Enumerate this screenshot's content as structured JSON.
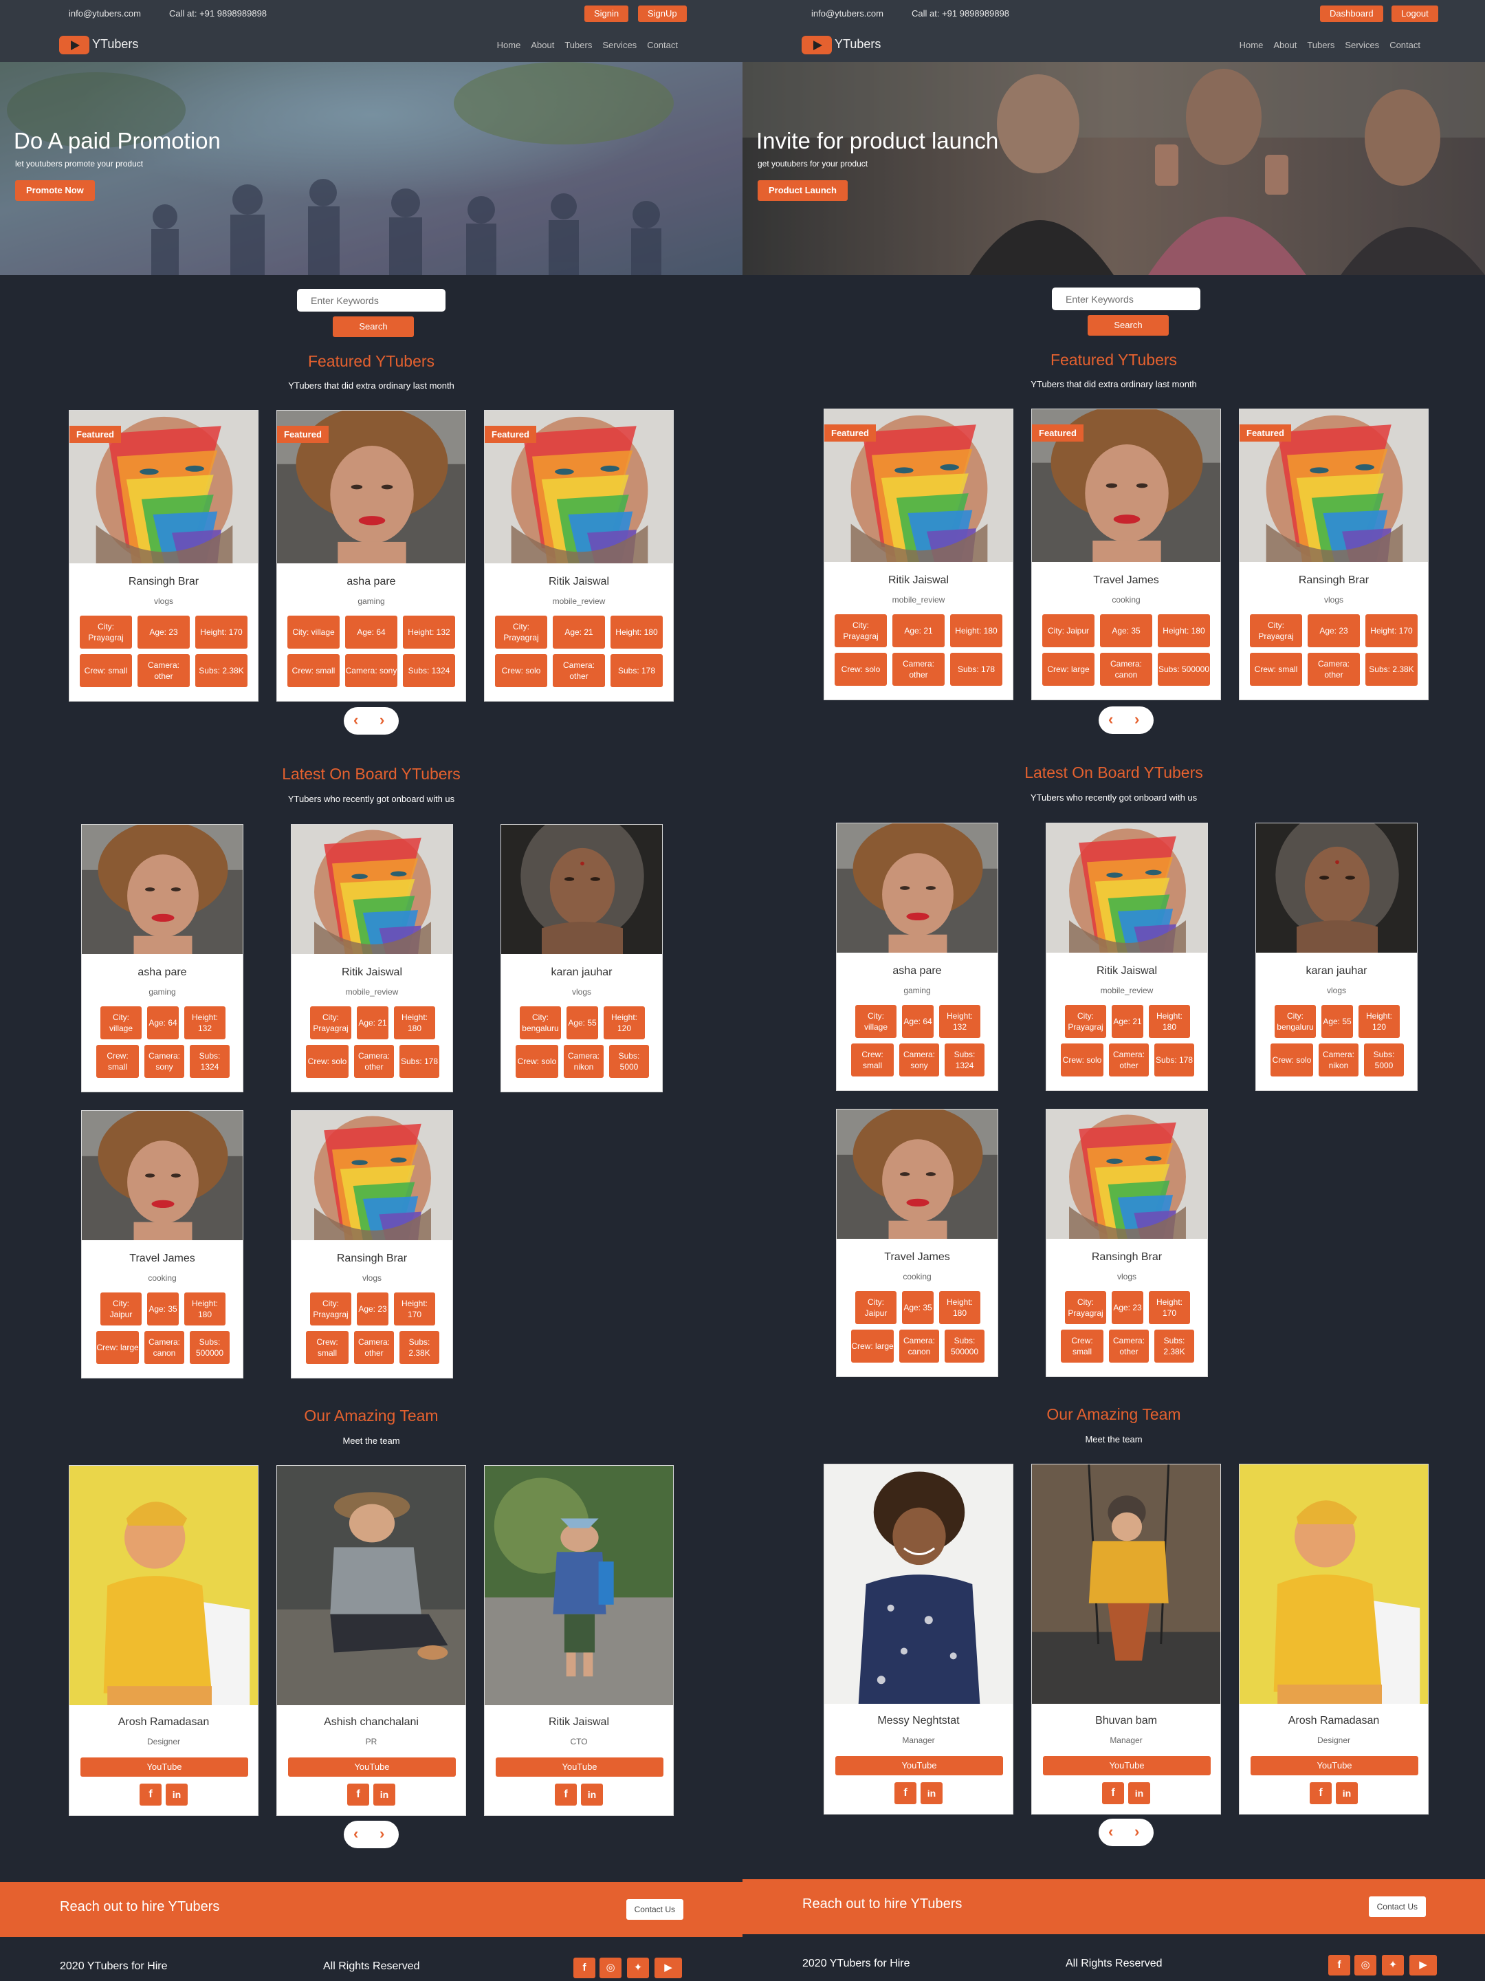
{
  "left": {
    "topbar": {
      "email": "info@ytubers.com",
      "phone": "Call at: +91 9898989898",
      "btn1": "Signin",
      "btn2": "SignUp"
    },
    "brand": "YTubers",
    "nav": [
      "Home",
      "About",
      "Tubers",
      "Services",
      "Contact"
    ],
    "hero": {
      "title": "Do A paid Promotion",
      "subtitle": "let youtubers promote your product",
      "button": "Promote Now"
    },
    "search": {
      "placeholder": "Enter Keywords",
      "button": "Search"
    },
    "featured": {
      "title": "Featured YTubers",
      "subtitle": "YTubers that did extra ordinary last month",
      "badge": "Featured",
      "cards": [
        {
          "name": "Ransingh Brar",
          "category": "vlogs",
          "tags": [
            "City: Prayagraj",
            "Age: 23",
            "Height: 170",
            "Crew: small",
            "Camera: other",
            "Subs: 2.38K"
          ]
        },
        {
          "name": "asha pare",
          "category": "gaming",
          "tags": [
            "City: village",
            "Age: 64",
            "Height: 132",
            "Crew: small",
            "Camera: sony",
            "Subs: 1324"
          ]
        },
        {
          "name": "Ritik Jaiswal",
          "category": "mobile_review",
          "tags": [
            "City: Prayagraj",
            "Age: 21",
            "Height: 180",
            "Crew: solo",
            "Camera: other",
            "Subs: 178"
          ]
        }
      ]
    },
    "latest": {
      "title": "Latest On Board YTubers",
      "subtitle": "YTubers who recently got onboard with us",
      "cards": [
        {
          "name": "asha pare",
          "category": "gaming",
          "tags": [
            "City: village",
            "Age: 64",
            "Height: 132",
            "Crew: small",
            "Camera: sony",
            "Subs: 1324"
          ]
        },
        {
          "name": "Ritik Jaiswal",
          "category": "mobile_review",
          "tags": [
            "City: Prayagraj",
            "Age: 21",
            "Height: 180",
            "Crew: solo",
            "Camera: other",
            "Subs: 178"
          ]
        },
        {
          "name": "karan jauhar",
          "category": "vlogs",
          "tags": [
            "City: bengaluru",
            "Age: 55",
            "Height: 120",
            "Crew: solo",
            "Camera: nikon",
            "Subs: 5000"
          ]
        },
        {
          "name": "Travel James",
          "category": "cooking",
          "tags": [
            "City: Jaipur",
            "Age: 35",
            "Height: 180",
            "Crew: large",
            "Camera: canon",
            "Subs: 500000"
          ]
        },
        {
          "name": "Ransingh Brar",
          "category": "vlogs",
          "tags": [
            "City: Prayagraj",
            "Age: 23",
            "Height: 170",
            "Crew: small",
            "Camera: other",
            "Subs: 2.38K"
          ]
        }
      ]
    },
    "team": {
      "title": "Our Amazing Team",
      "subtitle": "Meet the team",
      "youtube": "YouTube",
      "members": [
        {
          "name": "Arosh Ramadasan",
          "role": "Designer"
        },
        {
          "name": "Ashish chanchalani",
          "role": "PR"
        },
        {
          "name": "Ritik Jaiswal",
          "role": "CTO"
        }
      ]
    },
    "cta": {
      "text": "Reach out to hire YTubers",
      "button": "Contact Us"
    },
    "footer": {
      "copy": "2020 YTubers for Hire",
      "rights": "All Rights Reserved"
    }
  },
  "right": {
    "topbar": {
      "email": "info@ytubers.com",
      "phone": "Call at: +91 9898989898",
      "btn1": "Dashboard",
      "btn2": "Logout"
    },
    "brand": "YTubers",
    "nav": [
      "Home",
      "About",
      "Tubers",
      "Services",
      "Contact"
    ],
    "hero": {
      "title": "Invite for product launch",
      "subtitle": "get youtubers for your product",
      "button": "Product Launch"
    },
    "search": {
      "placeholder": "Enter Keywords",
      "button": "Search"
    },
    "featured": {
      "title": "Featured YTubers",
      "subtitle": "YTubers that did extra ordinary last month",
      "badge": "Featured",
      "cards": [
        {
          "name": "Ritik Jaiswal",
          "category": "mobile_review",
          "tags": [
            "City: Prayagraj",
            "Age: 21",
            "Height: 180",
            "Crew: solo",
            "Camera: other",
            "Subs: 178"
          ]
        },
        {
          "name": "Travel James",
          "category": "cooking",
          "tags": [
            "City: Jaipur",
            "Age: 35",
            "Height: 180",
            "Crew: large",
            "Camera: canon",
            "Subs: 500000"
          ]
        },
        {
          "name": "Ransingh Brar",
          "category": "vlogs",
          "tags": [
            "City: Prayagraj",
            "Age: 23",
            "Height: 170",
            "Crew: small",
            "Camera: other",
            "Subs: 2.38K"
          ]
        }
      ]
    },
    "latest": {
      "title": "Latest On Board YTubers",
      "subtitle": "YTubers who recently got onboard with us",
      "cards": [
        {
          "name": "asha pare",
          "category": "gaming",
          "tags": [
            "City: village",
            "Age: 64",
            "Height: 132",
            "Crew: small",
            "Camera: sony",
            "Subs: 1324"
          ]
        },
        {
          "name": "Ritik Jaiswal",
          "category": "mobile_review",
          "tags": [
            "City: Prayagraj",
            "Age: 21",
            "Height: 180",
            "Crew: solo",
            "Camera: other",
            "Subs: 178"
          ]
        },
        {
          "name": "karan jauhar",
          "category": "vlogs",
          "tags": [
            "City: bengaluru",
            "Age: 55",
            "Height: 120",
            "Crew: solo",
            "Camera: nikon",
            "Subs: 5000"
          ]
        },
        {
          "name": "Travel James",
          "category": "cooking",
          "tags": [
            "City: Jaipur",
            "Age: 35",
            "Height: 180",
            "Crew: large",
            "Camera: canon",
            "Subs: 500000"
          ]
        },
        {
          "name": "Ransingh Brar",
          "category": "vlogs",
          "tags": [
            "City: Prayagraj",
            "Age: 23",
            "Height: 170",
            "Crew: small",
            "Camera: other",
            "Subs: 2.38K"
          ]
        }
      ]
    },
    "team": {
      "title": "Our Amazing Team",
      "subtitle": "Meet the team",
      "youtube": "YouTube",
      "members": [
        {
          "name": "Messy Neghtstat",
          "role": "Manager"
        },
        {
          "name": "Bhuvan bam",
          "role": "Manager"
        },
        {
          "name": "Arosh Ramadasan",
          "role": "Designer"
        }
      ]
    },
    "cta": {
      "text": "Reach out to hire YTubers",
      "button": "Contact Us"
    },
    "footer": {
      "copy": "2020 YTubers for Hire",
      "rights": "All Rights Reserved"
    }
  },
  "colors": {
    "accent": "#e5612f",
    "bg": "#222731",
    "bar": "#343a43"
  },
  "icons": {
    "facebook": "f",
    "linkedin": "in",
    "instagram": "instagram-icon",
    "twitter": "twitter-icon",
    "youtube": "youtube-icon"
  }
}
